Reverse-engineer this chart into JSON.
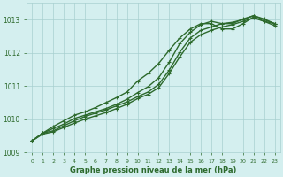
{
  "title": "Graphe pression niveau de la mer (hPa)",
  "bg_color": "#d4efef",
  "grid_color": "#a8d0d0",
  "line_color": "#2d6a2d",
  "xlim": [
    -0.5,
    23.5
  ],
  "ylim": [
    1009.0,
    1013.5
  ],
  "yticks": [
    1009,
    1010,
    1011,
    1012,
    1013
  ],
  "xticks": [
    0,
    1,
    2,
    3,
    4,
    5,
    6,
    7,
    8,
    9,
    10,
    11,
    12,
    13,
    14,
    15,
    16,
    17,
    18,
    19,
    20,
    21,
    22,
    23
  ],
  "series": [
    {
      "y": [
        1009.35,
        1009.58,
        1009.65,
        1009.8,
        1009.95,
        1010.08,
        1010.18,
        1010.28,
        1010.4,
        1010.52,
        1010.68,
        1010.82,
        1011.05,
        1011.48,
        1012.02,
        1012.45,
        1012.68,
        1012.78,
        1012.88,
        1012.92,
        1013.0,
        1013.12,
        1013.0,
        1012.88
      ],
      "marker": true,
      "lw": 1.0
    },
    {
      "y": [
        1009.35,
        1009.55,
        1009.62,
        1009.75,
        1009.88,
        1010.0,
        1010.1,
        1010.2,
        1010.32,
        1010.45,
        1010.62,
        1010.75,
        1010.95,
        1011.38,
        1011.88,
        1012.32,
        1012.55,
        1012.68,
        1012.78,
        1012.85,
        1012.95,
        1013.05,
        1012.95,
        1012.82
      ],
      "marker": true,
      "lw": 1.0
    },
    {
      "y": [
        1009.35,
        1009.58,
        1009.72,
        1009.85,
        1010.02,
        1010.12,
        1010.22,
        1010.32,
        1010.45,
        1010.6,
        1010.8,
        1010.98,
        1011.25,
        1011.72,
        1012.28,
        1012.62,
        1012.85,
        1012.95,
        1012.88,
        1012.88,
        1013.02,
        1013.12,
        1013.02,
        1012.88
      ],
      "marker": true,
      "lw": 1.0
    },
    {
      "y": [
        1009.35,
        1009.58,
        1009.78,
        1009.95,
        1010.12,
        1010.22,
        1010.35,
        1010.5,
        1010.65,
        1010.82,
        1011.15,
        1011.38,
        1011.68,
        1012.08,
        1012.45,
        1012.72,
        1012.88,
        1012.88,
        1012.72,
        1012.72,
        1012.88,
        1013.08,
        1012.95,
        1012.88
      ],
      "marker": true,
      "lw": 1.0
    }
  ]
}
